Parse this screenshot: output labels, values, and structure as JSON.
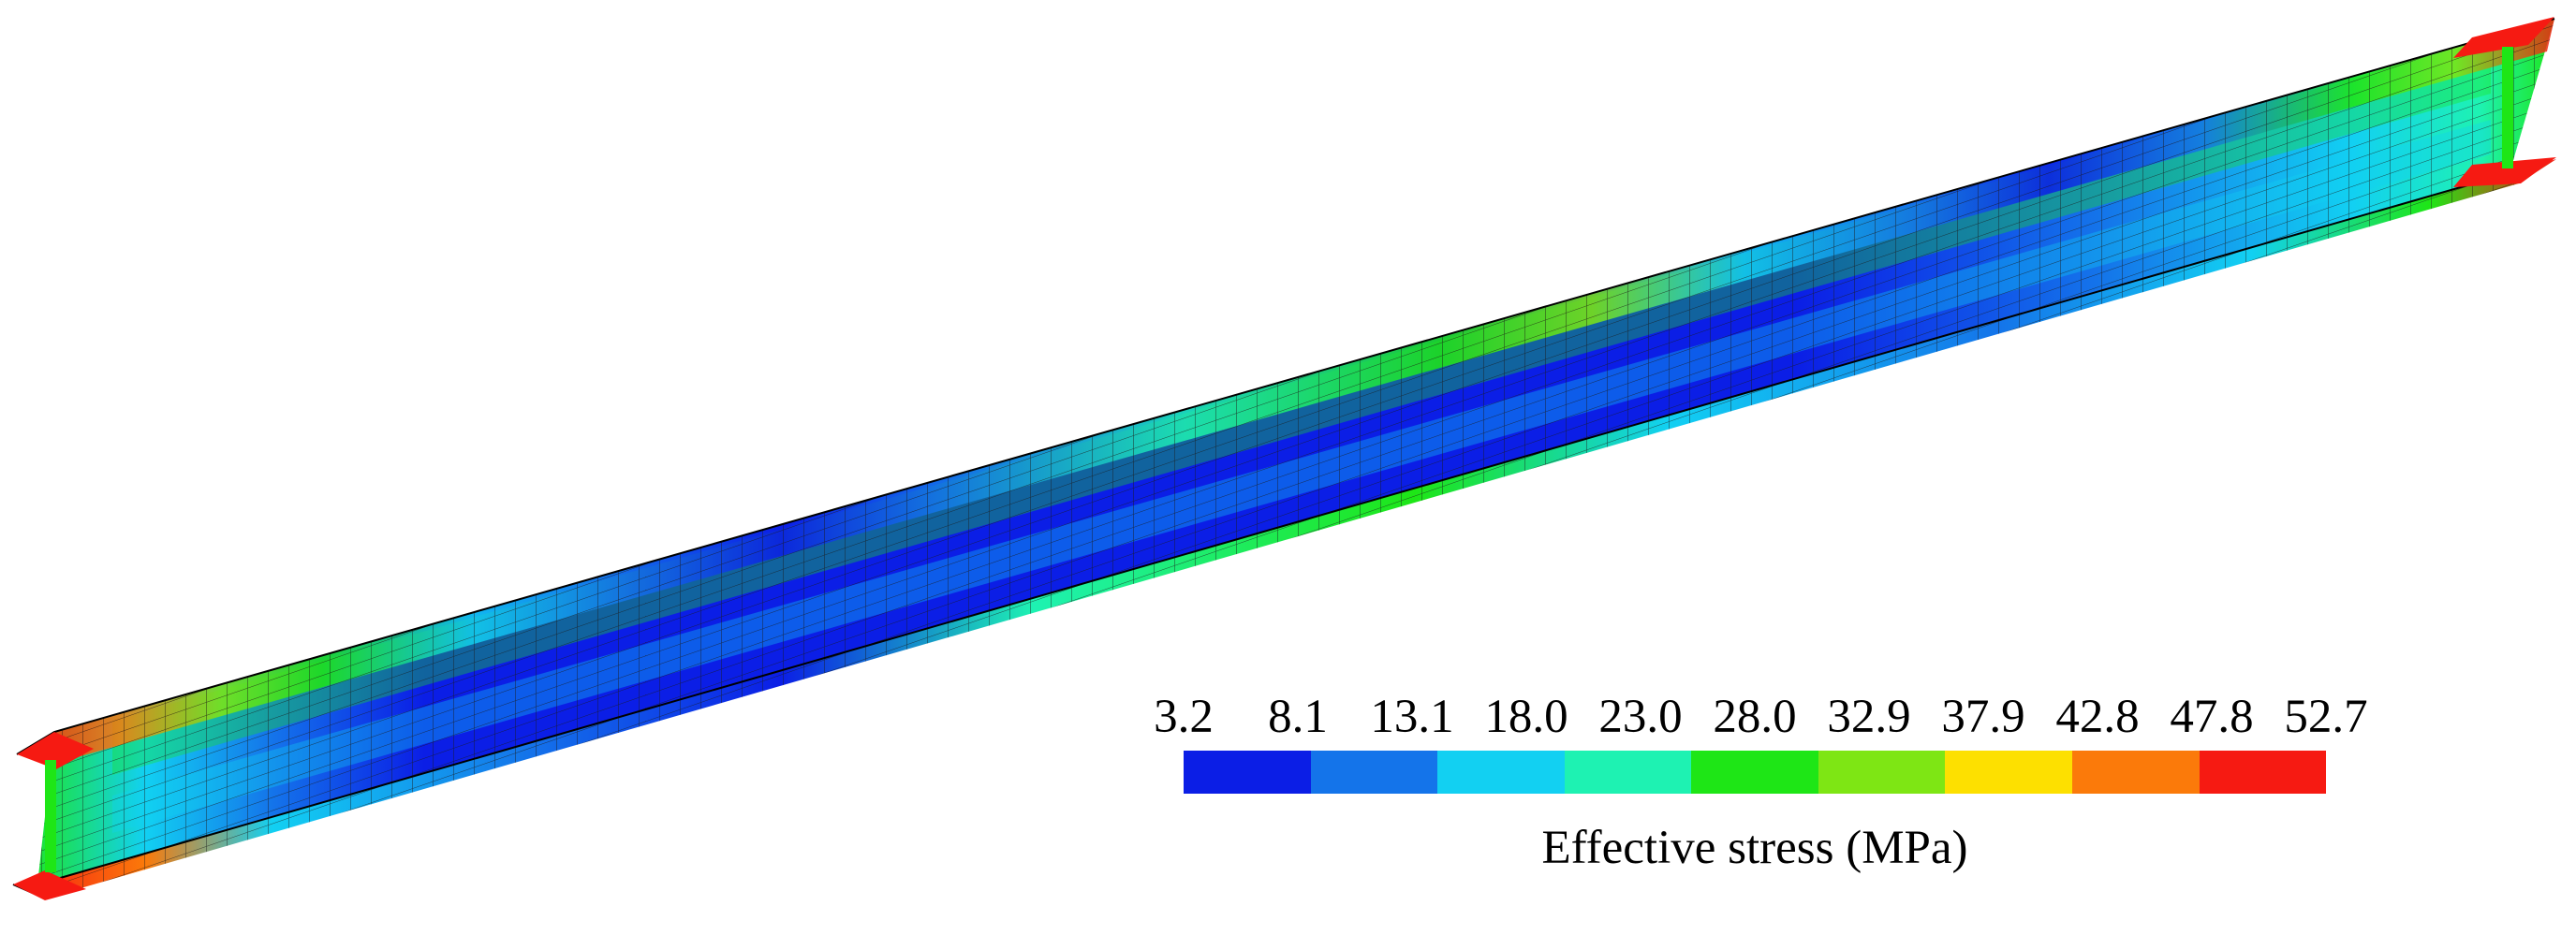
{
  "legend": {
    "title": "Effective stress (MPa)",
    "ticks": [
      "3.2",
      "8.1",
      "13.1",
      "18.0",
      "23.0",
      "28.0",
      "32.9",
      "37.9",
      "42.8",
      "47.8",
      "52.7"
    ],
    "colors": [
      "#0b1ee6",
      "#1474ea",
      "#12d0f2",
      "#1ef2b2",
      "#1ee616",
      "#7ee614",
      "#fde000",
      "#fb7a0a",
      "#f61a12"
    ]
  },
  "beam": {
    "description_colors": {
      "background": "#ffffff",
      "mesh": "#1a1a1a",
      "flange_end": "#f61a12"
    }
  }
}
